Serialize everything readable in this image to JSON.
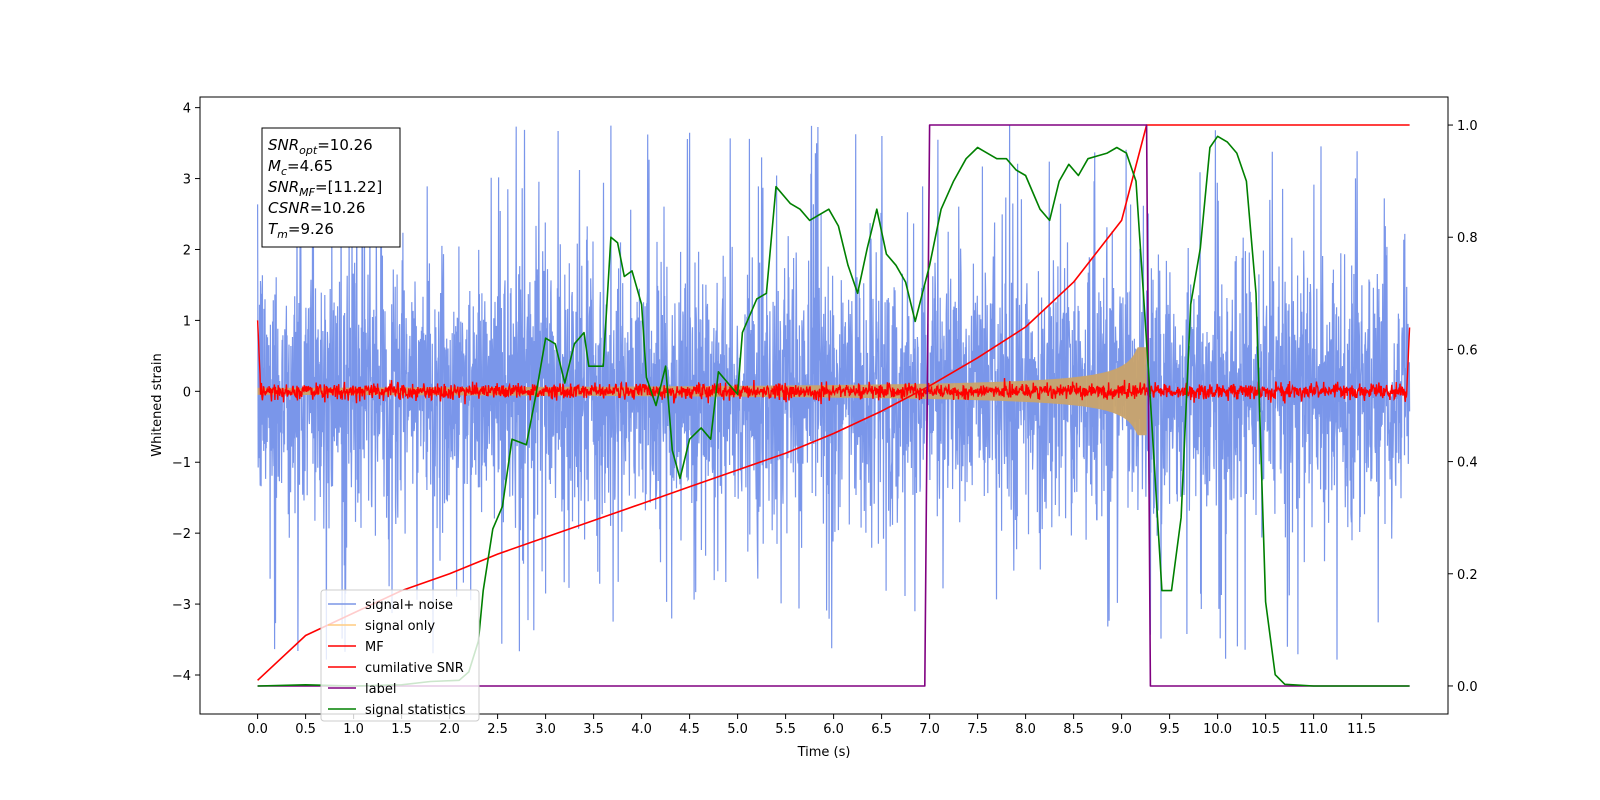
{
  "chart_data": {
    "type": "line",
    "xlabel": "Time (s)",
    "ylabel": "Whitened strain",
    "xlim": [
      -0.6,
      12.4
    ],
    "ylim": [
      -4.55,
      4.15
    ],
    "y2lim": [
      -0.05,
      1.05
    ],
    "x_ticks": [
      "0.0",
      "0.5",
      "1.0",
      "1.5",
      "2.0",
      "2.5",
      "3.0",
      "3.5",
      "4.0",
      "4.5",
      "5.0",
      "5.5",
      "6.0",
      "6.5",
      "7.0",
      "7.5",
      "8.0",
      "8.5",
      "9.0",
      "9.5",
      "10.0",
      "10.5",
      "11.0",
      "11.5"
    ],
    "y_ticks": [
      "4",
      "3",
      "2",
      "1",
      "0",
      "−1",
      "−2",
      "−3",
      "−4"
    ],
    "y2_ticks": [
      "1.0",
      "0.8",
      "0.6",
      "0.4",
      "0.2",
      "0.0"
    ],
    "annotation": [
      {
        "base": "SNR",
        "sub": "opt",
        "value": "=10.26"
      },
      {
        "base": "M",
        "sub": "c",
        "value": "=4.65"
      },
      {
        "base": "SNR",
        "sub": "MF",
        "value": "=[11.22]"
      },
      {
        "base": "CSNR",
        "sub": "",
        "value": "=10.26"
      },
      {
        "base": "T",
        "sub": "m",
        "value": "=9.26"
      }
    ],
    "legend_position": "lower-left",
    "series": [
      {
        "name": "signal+ noise",
        "color": "#4169e1",
        "axis": "left",
        "style": "noise band ±2 (peaks to ±3.8)",
        "x_range": [
          0,
          12
        ]
      },
      {
        "name": "signal only",
        "color": "#ffa500",
        "axis": "left",
        "style": "chirp growing to amplitude ~0.6 at 9.26 s",
        "x_range": [
          0,
          9.26
        ]
      },
      {
        "name": "MF",
        "color": "#ff0000",
        "axis": "left",
        "style": "noisy near 0 (±0.15), 1.0 at both ends",
        "x_range": [
          0,
          12
        ]
      },
      {
        "name": "cumilative SNR",
        "color": "#ff0000",
        "axis": "right",
        "points": [
          [
            0,
            0.01
          ],
          [
            0.5,
            0.09
          ],
          [
            1,
            0.13
          ],
          [
            1.5,
            0.17
          ],
          [
            2,
            0.2
          ],
          [
            2.5,
            0.235
          ],
          [
            3,
            0.265
          ],
          [
            3.5,
            0.295
          ],
          [
            4,
            0.325
          ],
          [
            4.5,
            0.355
          ],
          [
            5,
            0.385
          ],
          [
            5.5,
            0.415
          ],
          [
            6,
            0.45
          ],
          [
            6.5,
            0.49
          ],
          [
            7,
            0.535
          ],
          [
            7.5,
            0.585
          ],
          [
            8,
            0.64
          ],
          [
            8.5,
            0.72
          ],
          [
            9,
            0.83
          ],
          [
            9.26,
            1.0
          ],
          [
            12,
            1.0
          ]
        ]
      },
      {
        "name": "label",
        "color": "#800080",
        "axis": "right",
        "points": [
          [
            0,
            0
          ],
          [
            6.95,
            0
          ],
          [
            7.0,
            1
          ],
          [
            9.26,
            1
          ],
          [
            9.3,
            0
          ],
          [
            12,
            0
          ]
        ]
      },
      {
        "name": "signal statistics",
        "color": "#008000",
        "axis": "right",
        "points": [
          [
            0,
            0
          ],
          [
            0.5,
            0.002
          ],
          [
            1,
            0
          ],
          [
            1.5,
            0.002
          ],
          [
            1.8,
            0.008
          ],
          [
            2.1,
            0.01
          ],
          [
            2.2,
            0.025
          ],
          [
            2.3,
            0.08
          ],
          [
            2.35,
            0.17
          ],
          [
            2.45,
            0.28
          ],
          [
            2.55,
            0.32
          ],
          [
            2.65,
            0.44
          ],
          [
            2.8,
            0.43
          ],
          [
            2.9,
            0.52
          ],
          [
            3.0,
            0.62
          ],
          [
            3.1,
            0.61
          ],
          [
            3.2,
            0.54
          ],
          [
            3.3,
            0.61
          ],
          [
            3.4,
            0.63
          ],
          [
            3.45,
            0.57
          ],
          [
            3.6,
            0.57
          ],
          [
            3.68,
            0.8
          ],
          [
            3.75,
            0.79
          ],
          [
            3.82,
            0.73
          ],
          [
            3.9,
            0.74
          ],
          [
            4.0,
            0.68
          ],
          [
            4.05,
            0.55
          ],
          [
            4.15,
            0.5
          ],
          [
            4.25,
            0.57
          ],
          [
            4.32,
            0.42
          ],
          [
            4.4,
            0.37
          ],
          [
            4.5,
            0.44
          ],
          [
            4.62,
            0.46
          ],
          [
            4.72,
            0.44
          ],
          [
            4.8,
            0.56
          ],
          [
            4.9,
            0.54
          ],
          [
            5.0,
            0.52
          ],
          [
            5.05,
            0.63
          ],
          [
            5.2,
            0.69
          ],
          [
            5.3,
            0.7
          ],
          [
            5.4,
            0.89
          ],
          [
            5.55,
            0.86
          ],
          [
            5.65,
            0.85
          ],
          [
            5.75,
            0.83
          ],
          [
            5.85,
            0.84
          ],
          [
            5.95,
            0.85
          ],
          [
            6.05,
            0.82
          ],
          [
            6.15,
            0.75
          ],
          [
            6.25,
            0.7
          ],
          [
            6.35,
            0.78
          ],
          [
            6.45,
            0.85
          ],
          [
            6.55,
            0.77
          ],
          [
            6.65,
            0.75
          ],
          [
            6.75,
            0.72
          ],
          [
            6.85,
            0.65
          ],
          [
            7.0,
            0.75
          ],
          [
            7.12,
            0.85
          ],
          [
            7.25,
            0.9
          ],
          [
            7.38,
            0.94
          ],
          [
            7.5,
            0.96
          ],
          [
            7.55,
            0.955
          ],
          [
            7.7,
            0.94
          ],
          [
            7.8,
            0.94
          ],
          [
            7.9,
            0.92
          ],
          [
            8.0,
            0.91
          ],
          [
            8.1,
            0.87
          ],
          [
            8.15,
            0.85
          ],
          [
            8.25,
            0.83
          ],
          [
            8.35,
            0.9
          ],
          [
            8.45,
            0.93
          ],
          [
            8.55,
            0.91
          ],
          [
            8.65,
            0.94
          ],
          [
            8.75,
            0.945
          ],
          [
            8.85,
            0.95
          ],
          [
            8.95,
            0.96
          ],
          [
            9.05,
            0.95
          ],
          [
            9.15,
            0.9
          ],
          [
            9.3,
            0.51
          ],
          [
            9.42,
            0.17
          ],
          [
            9.52,
            0.17
          ],
          [
            9.62,
            0.3
          ],
          [
            9.72,
            0.68
          ],
          [
            9.82,
            0.78
          ],
          [
            9.92,
            0.96
          ],
          [
            10.0,
            0.98
          ],
          [
            10.1,
            0.97
          ],
          [
            10.2,
            0.95
          ],
          [
            10.3,
            0.9
          ],
          [
            10.4,
            0.7
          ],
          [
            10.5,
            0.15
          ],
          [
            10.6,
            0.02
          ],
          [
            10.7,
            0.003
          ],
          [
            11,
            0
          ],
          [
            12,
            0
          ]
        ]
      }
    ]
  }
}
